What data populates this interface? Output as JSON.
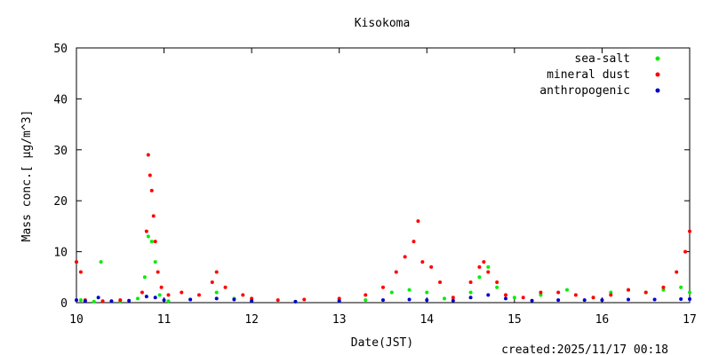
{
  "chart_data": {
    "type": "scatter",
    "title": "Kisokoma",
    "xlabel": "Date(JST)",
    "ylabel": "Mass conc.[ μg/m^3]",
    "xlim": [
      10,
      17
    ],
    "ylim": [
      0,
      50
    ],
    "xticks": [
      "10",
      "11",
      "12",
      "13",
      "14",
      "15",
      "16",
      "17"
    ],
    "yticks": [
      "0",
      "10",
      "20",
      "30",
      "40",
      "50"
    ],
    "legend_position": "top-right",
    "grid": false,
    "series": [
      {
        "name": "sea-salt",
        "color": "#00ee00",
        "x": [
          10.0,
          10.05,
          10.2,
          10.28,
          10.5,
          10.7,
          10.78,
          10.82,
          10.86,
          10.9,
          10.95,
          11.05,
          11.3,
          11.6,
          11.8,
          12.0,
          12.5,
          13.0,
          13.3,
          13.6,
          13.8,
          14.0,
          14.2,
          14.5,
          14.6,
          14.7,
          14.8,
          15.0,
          15.3,
          15.6,
          15.9,
          16.1,
          16.3,
          16.5,
          16.7,
          16.9,
          17.0
        ],
        "y": [
          8,
          0.5,
          0.2,
          8,
          0.3,
          0.8,
          5,
          13,
          12,
          8,
          1.5,
          0.3,
          0.6,
          2,
          0.8,
          0.4,
          0.2,
          0.3,
          0.5,
          2,
          2.5,
          2,
          0.8,
          2,
          5,
          7,
          3,
          1,
          1.5,
          2.5,
          1,
          2,
          2.5,
          2,
          2.5,
          3,
          2
        ]
      },
      {
        "name": "mineral dust",
        "color": "#ff0000",
        "x": [
          10.0,
          10.05,
          10.1,
          10.3,
          10.5,
          10.75,
          10.8,
          10.82,
          10.84,
          10.86,
          10.88,
          10.9,
          10.93,
          10.97,
          11.05,
          11.2,
          11.4,
          11.55,
          11.6,
          11.7,
          11.9,
          12.0,
          12.3,
          12.6,
          13.0,
          13.3,
          13.5,
          13.65,
          13.75,
          13.85,
          13.9,
          13.95,
          14.05,
          14.15,
          14.3,
          14.5,
          14.6,
          14.65,
          14.7,
          14.8,
          14.9,
          15.1,
          15.3,
          15.5,
          15.7,
          15.9,
          16.1,
          16.3,
          16.5,
          16.7,
          16.85,
          16.95,
          17.0
        ],
        "y": [
          8,
          6,
          0.5,
          0.3,
          0.5,
          2,
          14,
          29,
          25,
          22,
          17,
          12,
          6,
          3,
          1.5,
          2,
          1.5,
          4,
          6,
          3,
          1.5,
          0.8,
          0.5,
          0.6,
          0.8,
          1.5,
          3,
          6,
          9,
          12,
          16,
          8,
          7,
          4,
          1,
          4,
          7,
          8,
          6,
          4,
          1.5,
          1,
          2,
          2,
          1.5,
          1,
          1.5,
          2.5,
          2,
          3,
          6,
          10,
          14
        ]
      },
      {
        "name": "anthropogenic",
        "color": "#0000cc",
        "x": [
          10.0,
          10.1,
          10.25,
          10.4,
          10.6,
          10.8,
          10.9,
          11.0,
          11.3,
          11.6,
          11.8,
          12.0,
          12.5,
          13.0,
          13.5,
          13.8,
          14.0,
          14.3,
          14.5,
          14.7,
          14.9,
          15.2,
          15.5,
          15.8,
          16.0,
          16.3,
          16.6,
          16.9,
          17.0
        ],
        "y": [
          0.5,
          0.3,
          1,
          0.3,
          0.4,
          1.2,
          1,
          0.5,
          0.6,
          0.8,
          0.6,
          0.3,
          0.2,
          0.3,
          0.5,
          0.6,
          0.5,
          0.4,
          1,
          1.5,
          0.8,
          0.4,
          0.5,
          0.5,
          0.5,
          0.6,
          0.6,
          0.7,
          0.7
        ]
      }
    ]
  },
  "footer": {
    "created": "created:2025/11/17 00:18"
  }
}
